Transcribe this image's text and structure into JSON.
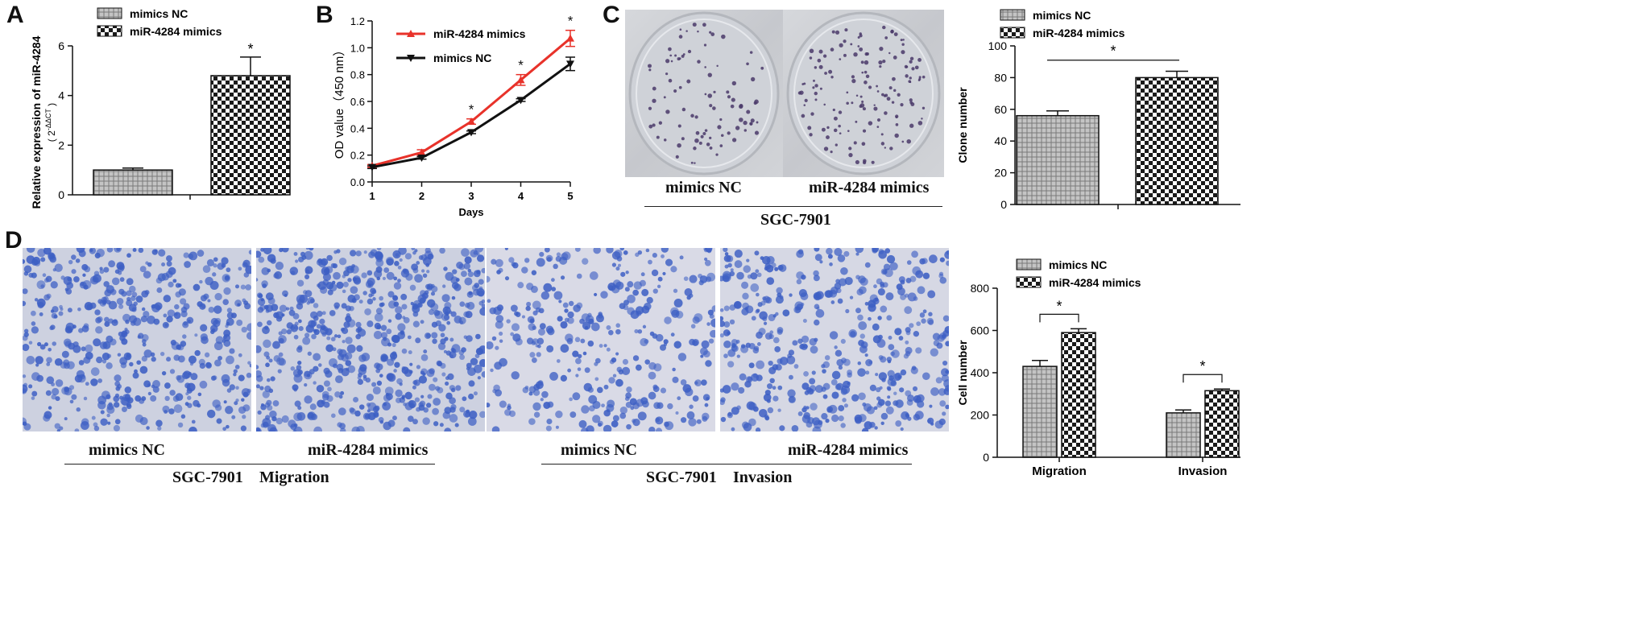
{
  "panels": {
    "a": "A",
    "b": "B",
    "c": "C",
    "d": "D"
  },
  "labels": {
    "c_left": "mimics NC",
    "c_right": "miR-4284 mimics",
    "c_cell_line": "SGC-7901",
    "d_left1": "mimics NC",
    "d_right1": "miR-4284 mimics",
    "d_left2": "mimics NC",
    "d_right2": "miR-4284 mimics",
    "d_mig_line": "SGC-7901",
    "d_mig_type": "Migration",
    "d_inv_line": "SGC-7901",
    "d_inv_type": "Invasion"
  },
  "colors": {
    "line_red": "#e8322a",
    "line_black": "#111111",
    "cell_stain": "#3d5fc4",
    "colony": "#4a3a6a"
  },
  "chart_data": [
    {
      "id": "A",
      "type": "bar",
      "categories": [
        "mimics NC",
        "miR-4284 mimics"
      ],
      "values": [
        1.0,
        4.8
      ],
      "errors": [
        0.08,
        0.75
      ],
      "significance": [
        "",
        "*"
      ],
      "ylabel": "Relative expression of miR-4284",
      "ylabel_sub": "( 2",
      "ylabel_sup": "-ΔΔCT",
      "ylabel_close": ")",
      "ylim": [
        0,
        6
      ],
      "yticks": [
        0,
        2,
        4,
        6
      ],
      "legend": [
        "mimics NC",
        "miR-4284 mimics"
      ],
      "legend_position": "top"
    },
    {
      "id": "B",
      "type": "line",
      "x": [
        1,
        2,
        3,
        4,
        5
      ],
      "series": [
        {
          "name": "miR-4284 mimics",
          "values": [
            0.12,
            0.22,
            0.45,
            0.76,
            1.07
          ],
          "errors": [
            0.01,
            0.02,
            0.02,
            0.04,
            0.06
          ],
          "color": "#e8322a",
          "marker": "triangle-up"
        },
        {
          "name": "mimics NC",
          "values": [
            0.11,
            0.18,
            0.37,
            0.61,
            0.88
          ],
          "errors": [
            0.01,
            0.01,
            0.01,
            0.01,
            0.05
          ],
          "color": "#111111",
          "marker": "triangle-down"
        }
      ],
      "significance": [
        "",
        "",
        "*",
        "*",
        "*"
      ],
      "xlabel": "Days",
      "ylabel": "OD value（450 nm）",
      "ylim": [
        0.0,
        1.2
      ],
      "yticks": [
        "0.0",
        "0.2",
        "0.4",
        "0.6",
        "0.8",
        "1.0",
        "1.2"
      ],
      "legend_position": "top-left"
    },
    {
      "id": "C",
      "type": "bar",
      "categories": [
        "mimics NC",
        "miR-4284 mimics"
      ],
      "values": [
        56,
        80
      ],
      "errors": [
        3,
        4
      ],
      "significance": "*",
      "ylabel": "Clone number",
      "ylim": [
        0,
        100
      ],
      "yticks": [
        0,
        20,
        40,
        60,
        80,
        100
      ],
      "legend": [
        "mimics NC",
        "miR-4284 mimics"
      ],
      "legend_position": "top"
    },
    {
      "id": "D",
      "type": "bar",
      "categories": [
        "Migration",
        "Invasion"
      ],
      "series": [
        {
          "name": "mimics NC",
          "values": [
            430,
            210
          ],
          "errors": [
            28,
            14
          ]
        },
        {
          "name": "miR-4284 mimics",
          "values": [
            590,
            315
          ],
          "errors": [
            18,
            8
          ]
        }
      ],
      "significance": [
        "*",
        "*"
      ],
      "ylabel": "Cell number",
      "ylim": [
        0,
        800
      ],
      "yticks": [
        0,
        200,
        400,
        600,
        800
      ],
      "legend_position": "top"
    }
  ]
}
